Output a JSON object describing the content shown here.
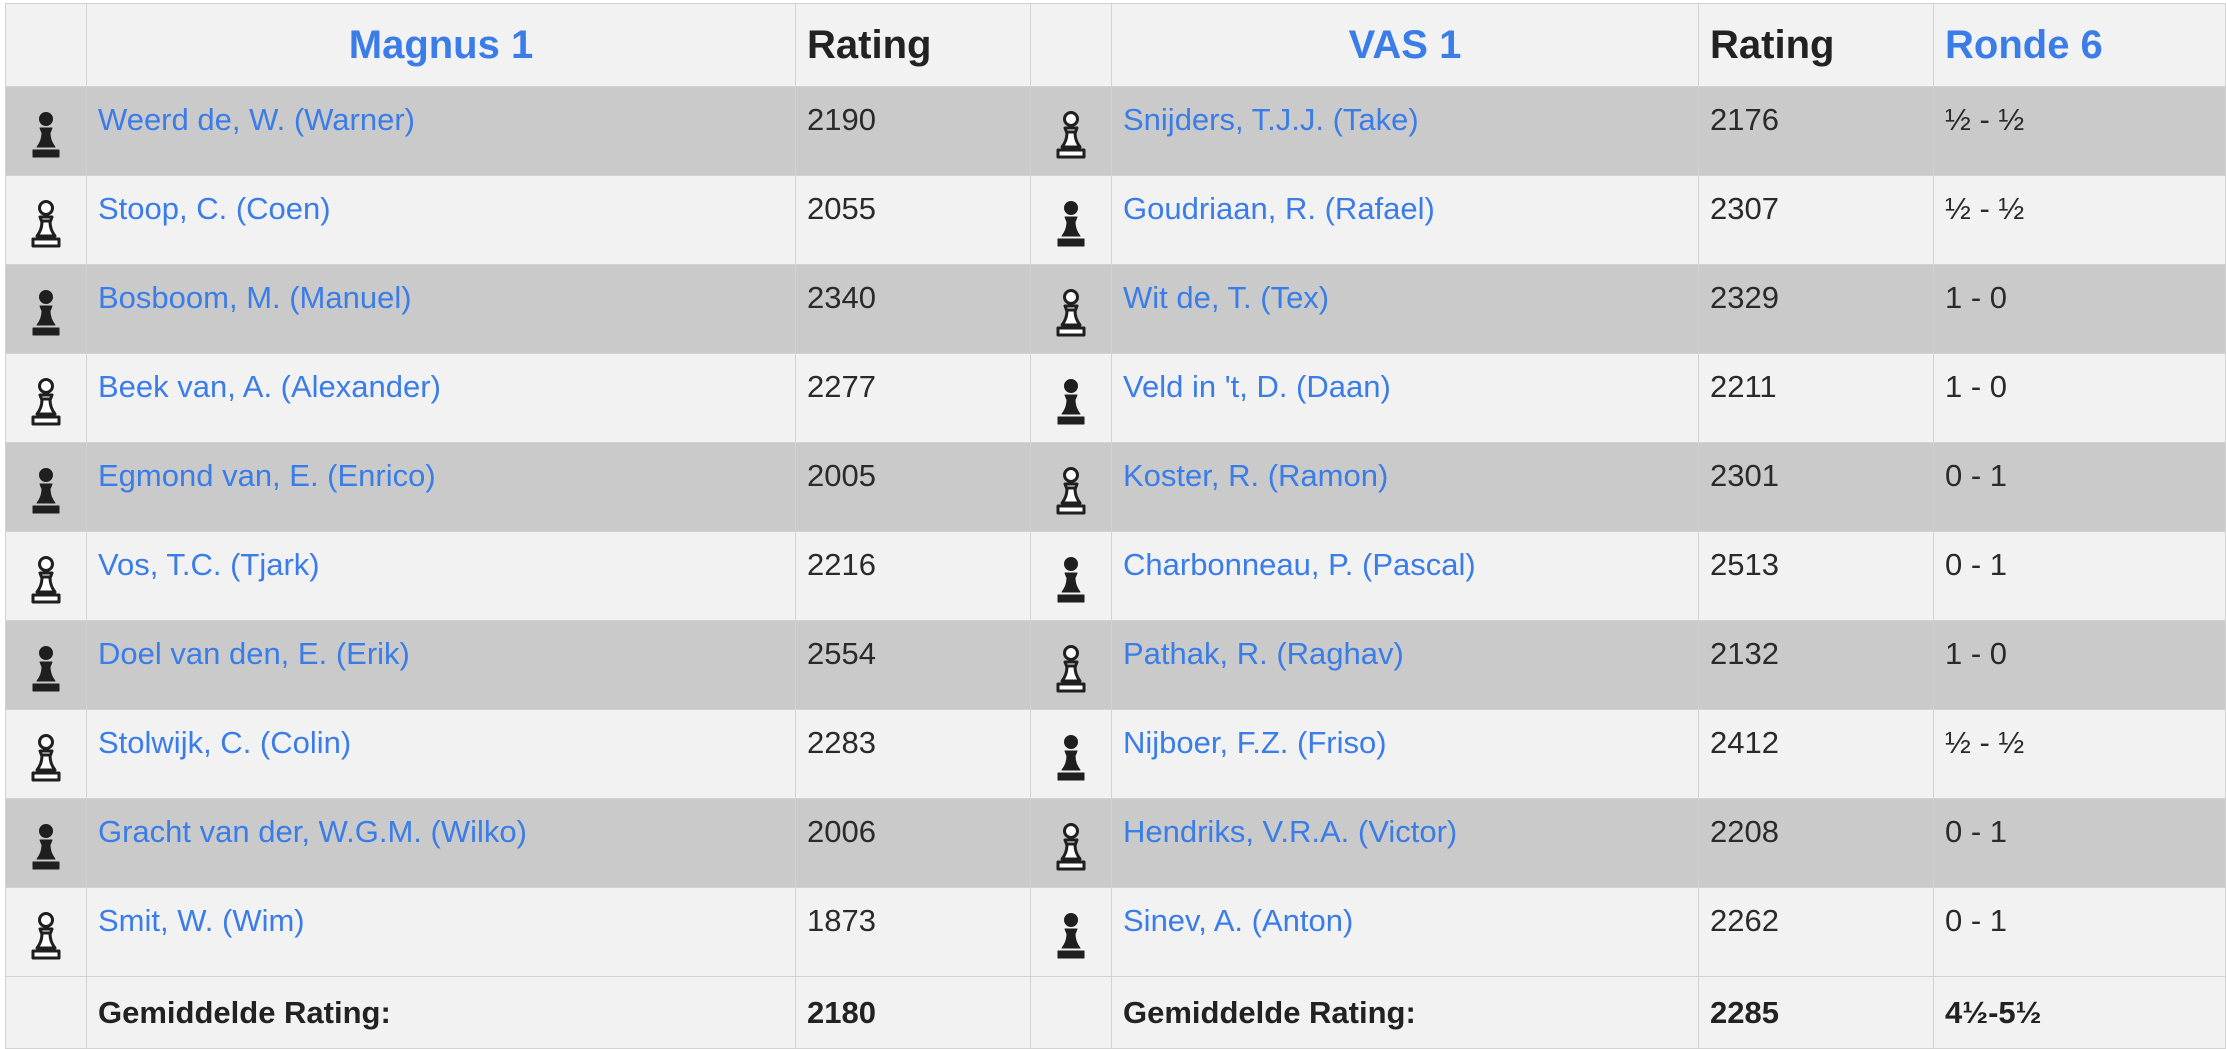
{
  "header": {
    "team_home": "Magnus 1",
    "rating_home": "Rating",
    "team_away": "VAS 1",
    "rating_away": "Rating",
    "round": "Ronde 6"
  },
  "pieces": {
    "black": "black-pawn-icon",
    "white": "white-pawn-icon"
  },
  "colors": {
    "link": "#3a7ce8",
    "row_dark": "#cacaca",
    "row_light": "#f2f2f2"
  },
  "games": [
    {
      "home_color": "black",
      "home_name": "Weerd de, W. (Warner)",
      "home_rating": "2190",
      "away_color": "white",
      "away_name": "Snijders, T.J.J. (Take)",
      "away_rating": "2176",
      "result": "½ - ½"
    },
    {
      "home_color": "white",
      "home_name": "Stoop, C. (Coen)",
      "home_rating": "2055",
      "away_color": "black",
      "away_name": "Goudriaan, R. (Rafael)",
      "away_rating": "2307",
      "result": "½ - ½"
    },
    {
      "home_color": "black",
      "home_name": "Bosboom, M. (Manuel)",
      "home_rating": "2340",
      "away_color": "white",
      "away_name": "Wit de, T. (Tex)",
      "away_rating": "2329",
      "result": "1 - 0"
    },
    {
      "home_color": "white",
      "home_name": "Beek van, A. (Alexander)",
      "home_rating": "2277",
      "away_color": "black",
      "away_name": "Veld in 't, D. (Daan)",
      "away_rating": "2211",
      "result": "1 - 0"
    },
    {
      "home_color": "black",
      "home_name": "Egmond van, E. (Enrico)",
      "home_rating": "2005",
      "away_color": "white",
      "away_name": "Koster, R. (Ramon)",
      "away_rating": "2301",
      "result": "0 - 1"
    },
    {
      "home_color": "white",
      "home_name": "Vos, T.C. (Tjark)",
      "home_rating": "2216",
      "away_color": "black",
      "away_name": "Charbonneau, P. (Pascal)",
      "away_rating": "2513",
      "result": "0 - 1"
    },
    {
      "home_color": "black",
      "home_name": "Doel van den, E. (Erik)",
      "home_rating": "2554",
      "away_color": "white",
      "away_name": "Pathak, R. (Raghav)",
      "away_rating": "2132",
      "result": "1 - 0"
    },
    {
      "home_color": "white",
      "home_name": "Stolwijk, C. (Colin)",
      "home_rating": "2283",
      "away_color": "black",
      "away_name": "Nijboer, F.Z. (Friso)",
      "away_rating": "2412",
      "result": "½ - ½"
    },
    {
      "home_color": "black",
      "home_name": "Gracht van der, W.G.M. (Wilko)",
      "home_rating": "2006",
      "away_color": "white",
      "away_name": "Hendriks, V.R.A. (Victor)",
      "away_rating": "2208",
      "result": "0 - 1"
    },
    {
      "home_color": "white",
      "home_name": "Smit, W. (Wim)",
      "home_rating": "1873",
      "away_color": "black",
      "away_name": "Sinev, A. (Anton)",
      "away_rating": "2262",
      "result": "0 - 1"
    }
  ],
  "footer": {
    "avg_label_home": "Gemiddelde Rating:",
    "avg_home": "2180",
    "avg_label_away": "Gemiddelde Rating:",
    "avg_away": "2285",
    "total": "4½-5½"
  }
}
